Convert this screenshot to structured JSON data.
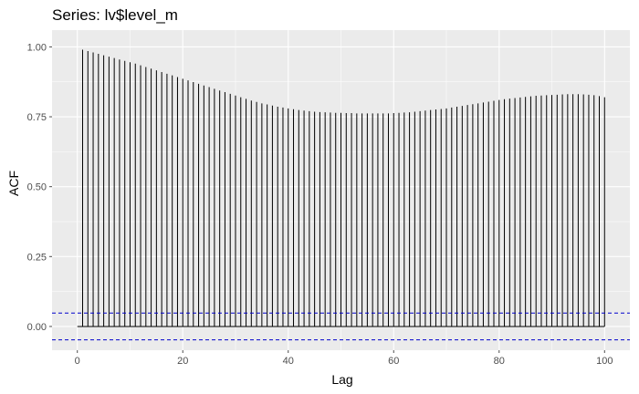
{
  "chart_data": {
    "type": "bar",
    "title": "Series: lv$level_m",
    "xlabel": "Lag",
    "ylabel": "ACF",
    "xlim": [
      -4.8,
      104.8
    ],
    "ylim": [
      -0.085,
      1.06
    ],
    "x_ticks": [
      0,
      20,
      40,
      60,
      80,
      100
    ],
    "x_tick_labels": [
      "0",
      "20",
      "40",
      "60",
      "80",
      "100"
    ],
    "y_ticks": [
      0.0,
      0.25,
      0.5,
      0.75,
      1.0
    ],
    "y_tick_labels": [
      "0.00",
      "0.25",
      "0.50",
      "0.75",
      "1.00"
    ],
    "grid": true,
    "legend": "none",
    "confidence_bounds": [
      0.048,
      -0.048
    ],
    "colors": {
      "panel": "#ebebeb",
      "grid": "#ffffff",
      "bar": "#000000",
      "bound": "#0000cc",
      "tick": "#4d4d4d"
    },
    "x": [
      1,
      2,
      3,
      4,
      5,
      6,
      7,
      8,
      9,
      10,
      11,
      12,
      13,
      14,
      15,
      16,
      17,
      18,
      19,
      20,
      21,
      22,
      23,
      24,
      25,
      26,
      27,
      28,
      29,
      30,
      31,
      32,
      33,
      34,
      35,
      36,
      37,
      38,
      39,
      40,
      41,
      42,
      43,
      44,
      45,
      46,
      47,
      48,
      49,
      50,
      51,
      52,
      53,
      54,
      55,
      56,
      57,
      58,
      59,
      60,
      61,
      62,
      63,
      64,
      65,
      66,
      67,
      68,
      69,
      70,
      71,
      72,
      73,
      74,
      75,
      76,
      77,
      78,
      79,
      80,
      81,
      82,
      83,
      84,
      85,
      86,
      87,
      88,
      89,
      90,
      91,
      92,
      93,
      94,
      95,
      96,
      97,
      98,
      99,
      100
    ],
    "values": [
      0.99,
      0.985,
      0.98,
      0.975,
      0.97,
      0.965,
      0.96,
      0.955,
      0.95,
      0.945,
      0.94,
      0.934,
      0.928,
      0.922,
      0.916,
      0.91,
      0.904,
      0.898,
      0.892,
      0.886,
      0.88,
      0.874,
      0.868,
      0.862,
      0.856,
      0.85,
      0.844,
      0.838,
      0.832,
      0.826,
      0.82,
      0.814,
      0.808,
      0.803,
      0.798,
      0.794,
      0.79,
      0.786,
      0.783,
      0.78,
      0.777,
      0.774,
      0.772,
      0.77,
      0.768,
      0.767,
      0.766,
      0.765,
      0.764,
      0.764,
      0.763,
      0.763,
      0.762,
      0.762,
      0.762,
      0.762,
      0.762,
      0.762,
      0.762,
      0.763,
      0.764,
      0.765,
      0.766,
      0.768,
      0.77,
      0.772,
      0.774,
      0.776,
      0.778,
      0.78,
      0.783,
      0.786,
      0.789,
      0.792,
      0.795,
      0.798,
      0.801,
      0.804,
      0.807,
      0.81,
      0.813,
      0.815,
      0.817,
      0.819,
      0.821,
      0.823,
      0.825,
      0.826,
      0.827,
      0.828,
      0.829,
      0.83,
      0.831,
      0.831,
      0.831,
      0.83,
      0.829,
      0.827,
      0.824,
      0.82
    ]
  }
}
